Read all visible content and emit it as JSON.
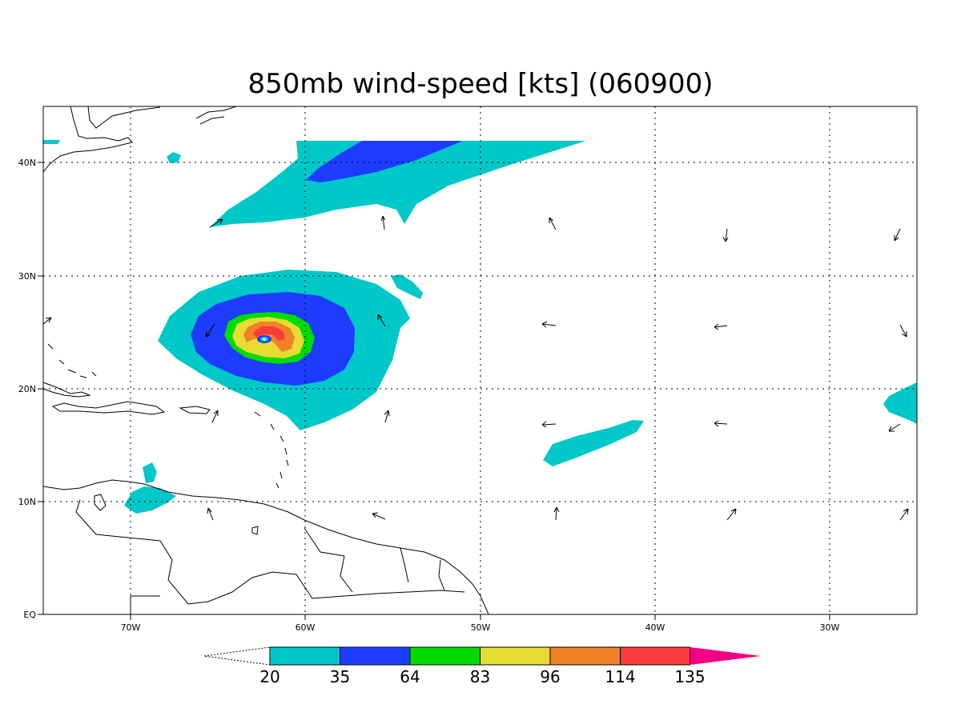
{
  "title": "850mb wind-speed [kts] (060900)",
  "longitude_ticks": [
    "70W",
    "60W",
    "50W",
    "40W",
    "30W"
  ],
  "latitude_ticks": [
    "EQ",
    "10N",
    "20N",
    "30N",
    "40N"
  ],
  "legend": {
    "levels": [
      "20",
      "35",
      "64",
      "83",
      "96",
      "114",
      "135"
    ],
    "colors": [
      "#00c8c8",
      "#1e3cff",
      "#00dc00",
      "#e6dc32",
      "#f08228",
      "#fa3c3c",
      "#f00082"
    ]
  },
  "map": {
    "lon_range": [
      -75,
      -25
    ],
    "lat_range": [
      0,
      45
    ],
    "gridlines": "dotted",
    "storm_center": {
      "lon": -62.1,
      "lat": 24.2
    }
  }
}
